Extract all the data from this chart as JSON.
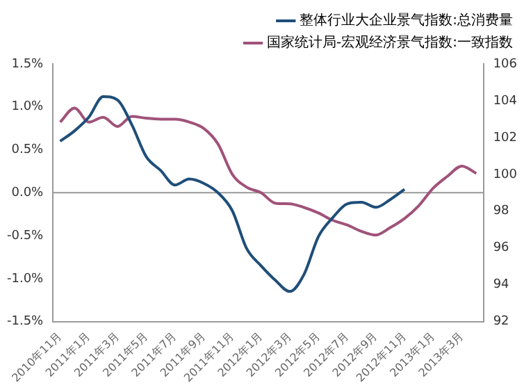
{
  "chart_data": {
    "type": "line",
    "categories": [
      "2010年11月",
      null,
      "2011年1月",
      null,
      "2011年3月",
      null,
      "2011年5月",
      null,
      "2011年7月",
      null,
      "2011年9月",
      null,
      "2011年11月",
      null,
      "2012年1月",
      null,
      "2012年3月",
      null,
      "2012年5月",
      null,
      "2012年7月",
      null,
      "2012年9月",
      null,
      "2012年11月",
      null,
      "2013年1月",
      null,
      "2013年3月",
      null
    ],
    "series": [
      {
        "name": "整体行业大企业景气指数:总消费量",
        "color": "#1f4e79",
        "axis": "y",
        "values": [
          0.6,
          0.72,
          0.88,
          1.12,
          1.08,
          0.79,
          0.42,
          0.26,
          0.09,
          0.16,
          0.11,
          0.0,
          -0.21,
          -0.65,
          -0.85,
          -1.02,
          -1.15,
          -0.95,
          -0.51,
          -0.29,
          -0.13,
          -0.11,
          -0.17,
          -0.08,
          0.04,
          null,
          null,
          null,
          null,
          null
        ]
      },
      {
        "name": "国家统计局-宏观经济景气指数:一致指数",
        "color": "#a0527a",
        "axis": "y2",
        "values": [
          102.84,
          103.6,
          102.84,
          103.1,
          102.6,
          103.15,
          103.05,
          103.0,
          103.0,
          102.84,
          102.5,
          101.65,
          100.0,
          99.3,
          99.0,
          98.43,
          98.4,
          98.2,
          97.9,
          97.5,
          97.25,
          96.9,
          96.7,
          97.1,
          97.6,
          98.3,
          99.25,
          99.9,
          100.45,
          100.05
        ]
      }
    ],
    "ylim": [
      -1.5,
      1.5
    ],
    "yticks": [
      {
        "value": -1.5,
        "label": "-1.5%"
      },
      {
        "value": -1.0,
        "label": "-1.0%"
      },
      {
        "value": -0.5,
        "label": "-0.5%"
      },
      {
        "value": 0,
        "label": "0.0%"
      },
      {
        "value": 0.5,
        "label": "0.5%"
      },
      {
        "value": 1.0,
        "label": "1.0%"
      },
      {
        "value": 1.5,
        "label": "1.5%"
      }
    ],
    "y2lim": [
      92,
      106
    ],
    "y2ticks": [
      92,
      94,
      96,
      98,
      100,
      102,
      104,
      106
    ],
    "ref_lines": [
      {
        "axis": "y",
        "value": 0,
        "color": "#999999"
      }
    ],
    "legend": "top right",
    "marker": "none",
    "line_style": "solid"
  }
}
